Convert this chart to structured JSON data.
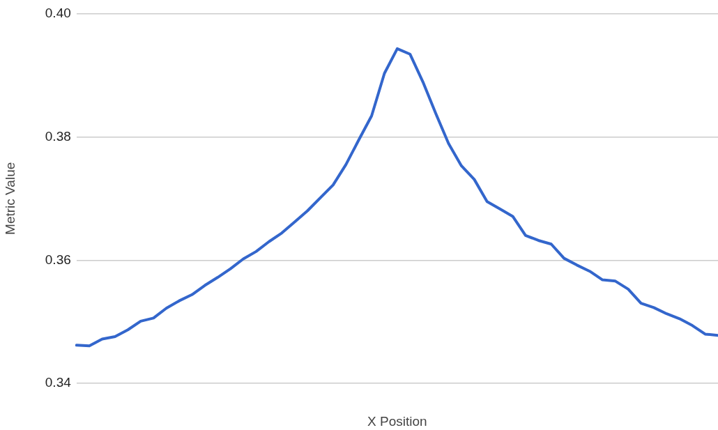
{
  "chart_data": {
    "type": "line",
    "xlabel": "X Position",
    "ylabel": "Metric Value",
    "categories": [
      null,
      null,
      null,
      null,
      null,
      null,
      null,
      null,
      null,
      null,
      null,
      null,
      null,
      null,
      null,
      null,
      null,
      null,
      null,
      null,
      null,
      null,
      null,
      null,
      null,
      null,
      null,
      null,
      null,
      null,
      null,
      null,
      null,
      null,
      null,
      null,
      null,
      null,
      null,
      null,
      null,
      null,
      null,
      null,
      null,
      null,
      null,
      null,
      null,
      null,
      null
    ],
    "series": [
      {
        "color": "#3366cc",
        "values": [
          0.3462,
          0.3461,
          0.3472,
          0.3476,
          0.3487,
          0.3501,
          0.3506,
          0.3522,
          0.3534,
          0.3544,
          0.3559,
          0.3572,
          0.3586,
          0.3602,
          0.3614,
          0.363,
          0.3644,
          0.3662,
          0.368,
          0.3701,
          0.3722,
          0.3755,
          0.3795,
          0.3834,
          0.3903,
          0.3943,
          0.3934,
          0.3889,
          0.3838,
          0.3789,
          0.3753,
          0.3731,
          0.3695,
          0.3683,
          0.3671,
          0.364,
          0.3632,
          0.3626,
          0.3603,
          0.3592,
          0.3582,
          0.3568,
          0.3566,
          0.3553,
          0.353,
          0.3523,
          0.3513,
          0.3505,
          0.3494,
          0.348,
          0.3478
        ]
      }
    ],
    "ylim": [
      0.34,
      0.4
    ],
    "yticks": [
      0.34,
      0.36,
      0.38,
      {
        "value": 0.4,
        "label": "0.40"
      }
    ],
    "grid": "y",
    "tick_labels": "y",
    "legend": false,
    "marker": "none",
    "line_style": "solid"
  }
}
